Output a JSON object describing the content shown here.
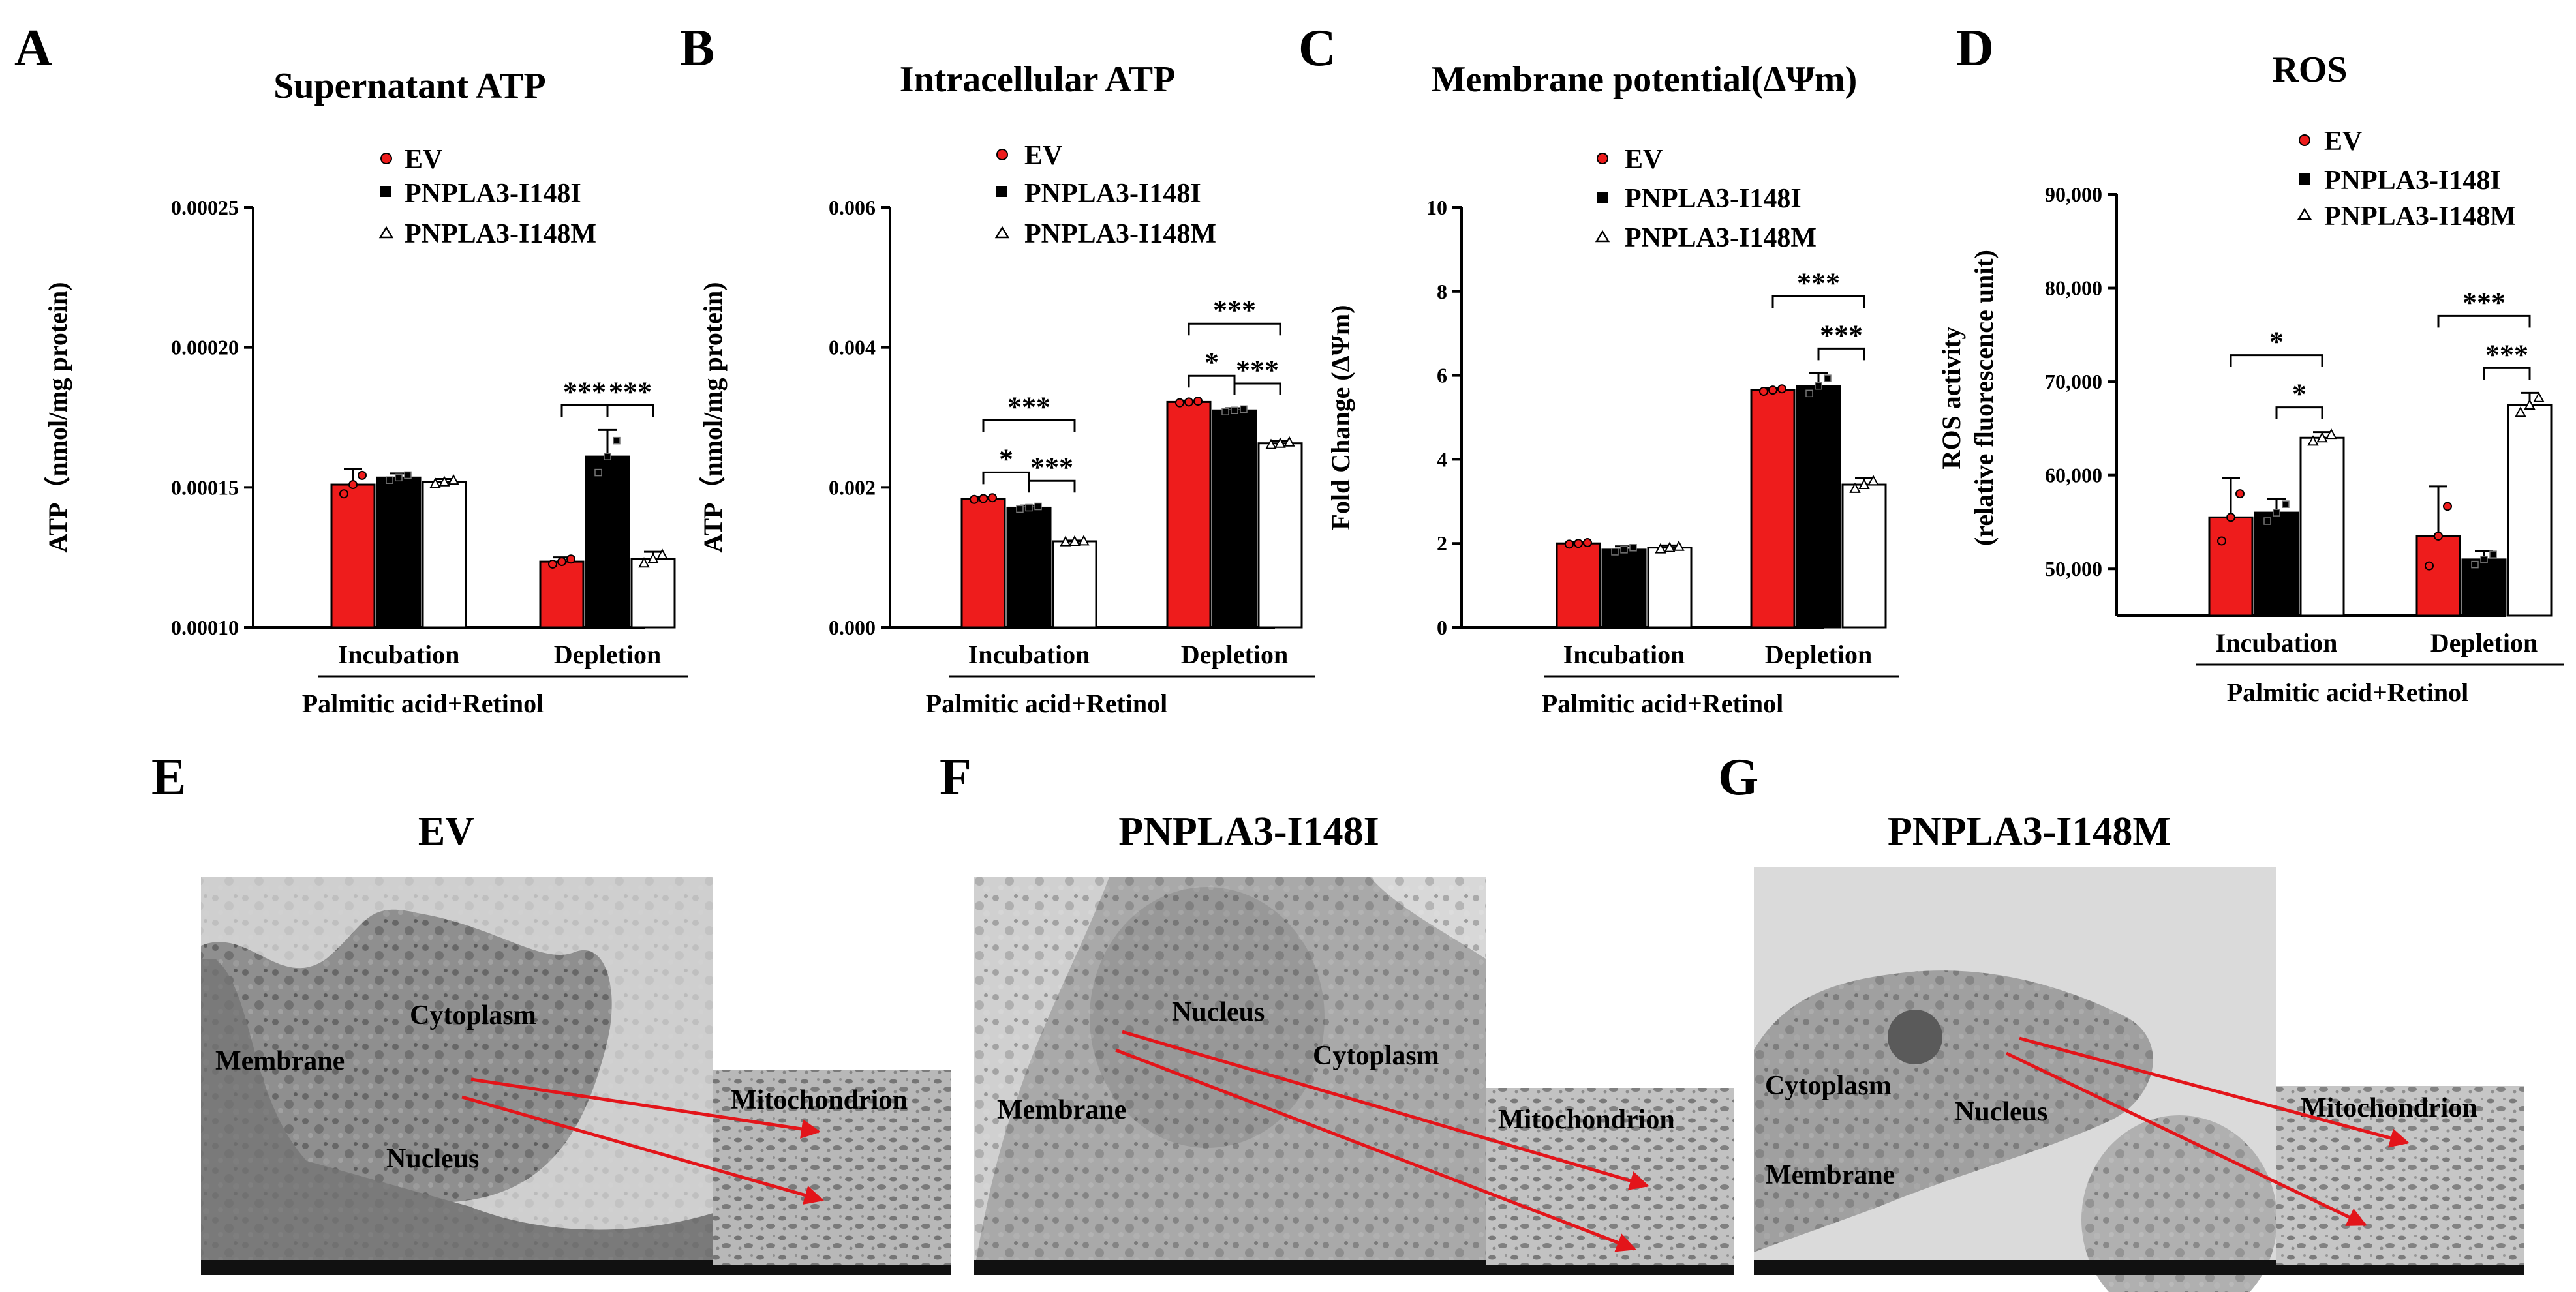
{
  "colors": {
    "ev": "#ee1c1c",
    "i148i": "#000000",
    "i148m": "#ffffff",
    "arrow": "#e3151a",
    "axis": "#000000"
  },
  "legend": [
    "EV",
    "PNPLA3-I148I",
    "PNPLA3-I148M"
  ],
  "group_label": "Palmitic acid+Retinol",
  "chart_data": [
    {
      "panel": "A",
      "type": "bar",
      "title": "Supernatant ATP",
      "ylabel": "ATP（nmol/mg protein)",
      "xlabel": "Palmitic acid+Retinol",
      "categories": [
        "Incubation",
        "Depletion"
      ],
      "ylim": [
        0.0001,
        0.00025
      ],
      "ytick_values": [
        0.0001,
        0.00015,
        0.0002,
        0.00025
      ],
      "ytick_labels": [
        "0.00010",
        "0.00015",
        "0.00020",
        "0.00025"
      ],
      "series": [
        {
          "name": "EV",
          "values": [
            0.000151,
            0.0001235
          ],
          "errors": [
            5.5e-06,
            1.5e-06
          ]
        },
        {
          "name": "PNPLA3-I148I",
          "values": [
            0.0001535,
            0.000161
          ],
          "errors": [
            1.5e-06,
            9.5e-06
          ]
        },
        {
          "name": "PNPLA3-I148M",
          "values": [
            0.000152,
            0.0001245
          ],
          "errors": [
            1e-06,
            2.5e-06
          ]
        }
      ],
      "significance": [
        {
          "group": 1,
          "from": 0,
          "to": 1,
          "label": "***",
          "level": 0
        },
        {
          "group": 1,
          "from": 1,
          "to": 2,
          "label": "***",
          "level": 0
        }
      ]
    },
    {
      "panel": "B",
      "type": "bar",
      "title": "Intracellular ATP",
      "ylabel": "ATP（nmol/mg protein)",
      "xlabel": "Palmitic acid+Retinol",
      "categories": [
        "Incubation",
        "Depletion"
      ],
      "ylim": [
        0,
        0.006
      ],
      "ytick_values": [
        0,
        0.002,
        0.004,
        0.006
      ],
      "ytick_labels": [
        "0.000",
        "0.002",
        "0.004",
        "0.006"
      ],
      "series": [
        {
          "name": "EV",
          "values": [
            0.00184,
            0.00322
          ],
          "errors": [
            2e-05,
            2e-05
          ]
        },
        {
          "name": "PNPLA3-I148I",
          "values": [
            0.00171,
            0.0031
          ],
          "errors": [
            3e-05,
            3e-05
          ]
        },
        {
          "name": "PNPLA3-I148M",
          "values": [
            0.00123,
            0.00263
          ],
          "errors": [
            1e-05,
            3e-05
          ]
        }
      ],
      "significance": [
        {
          "group": 0,
          "from": 0,
          "to": 1,
          "label": "*",
          "level": 0
        },
        {
          "group": 0,
          "from": 1,
          "to": 2,
          "label": "***",
          "level": 0
        },
        {
          "group": 0,
          "from": 0,
          "to": 2,
          "label": "***",
          "level": 1
        },
        {
          "group": 1,
          "from": 0,
          "to": 1,
          "label": "*",
          "level": 0
        },
        {
          "group": 1,
          "from": 1,
          "to": 2,
          "label": "***",
          "level": 0
        },
        {
          "group": 1,
          "from": 0,
          "to": 2,
          "label": "***",
          "level": 1
        }
      ]
    },
    {
      "panel": "C",
      "type": "bar",
      "title": "Membrane potential(ΔΨm)",
      "ylabel": "Fold Change (ΔΨm)",
      "xlabel": "Palmitic acid+Retinol",
      "categories": [
        "Incubation",
        "Depletion"
      ],
      "ylim": [
        0,
        10
      ],
      "ytick_values": [
        0,
        2,
        4,
        6,
        8,
        10
      ],
      "ytick_labels": [
        "0",
        "2",
        "4",
        "6",
        "8",
        "10"
      ],
      "series": [
        {
          "name": "EV",
          "values": [
            2.0,
            5.65
          ],
          "errors": [
            0.03,
            0.05
          ]
        },
        {
          "name": "PNPLA3-I148I",
          "values": [
            1.85,
            5.75
          ],
          "errors": [
            0.08,
            0.3
          ]
        },
        {
          "name": "PNPLA3-I148M",
          "values": [
            1.9,
            3.4
          ],
          "errors": [
            0.05,
            0.15
          ]
        }
      ],
      "significance": [
        {
          "group": 1,
          "from": 1,
          "to": 2,
          "label": "***",
          "level": 0
        },
        {
          "group": 1,
          "from": 0,
          "to": 2,
          "label": "***",
          "level": 1
        }
      ]
    },
    {
      "panel": "D",
      "type": "bar",
      "title": "ROS",
      "ylabel": "ROS activity",
      "ylabel2": "(relative fluorescence unit)",
      "xlabel": "Palmitic acid+Retinol",
      "categories": [
        "Incubation",
        "Depletion"
      ],
      "ylim": [
        45000,
        90000
      ],
      "ytick_values": [
        50000,
        60000,
        70000,
        80000,
        90000
      ],
      "ytick_labels": [
        "50,000",
        "60,000",
        "70,000",
        "80,000",
        "90,000"
      ],
      "series": [
        {
          "name": "EV",
          "values": [
            55500,
            53500
          ],
          "errors": [
            4200,
            5300
          ]
        },
        {
          "name": "PNPLA3-I148I",
          "values": [
            56000,
            51000
          ],
          "errors": [
            1500,
            900
          ]
        },
        {
          "name": "PNPLA3-I148M",
          "values": [
            64000,
            67500
          ],
          "errors": [
            600,
            1300
          ]
        }
      ],
      "significance": [
        {
          "group": 0,
          "from": 1,
          "to": 2,
          "label": "*",
          "level": 0
        },
        {
          "group": 0,
          "from": 0,
          "to": 2,
          "label": "*",
          "level": 1
        },
        {
          "group": 1,
          "from": 1,
          "to": 2,
          "label": "***",
          "level": 0
        },
        {
          "group": 1,
          "from": 0,
          "to": 2,
          "label": "***",
          "level": 1
        }
      ]
    }
  ],
  "micrographs": [
    {
      "panel": "E",
      "title": "EV",
      "labels": [
        "Cytoplasm",
        "Membrane",
        "Nucleus"
      ],
      "inset_label": "Mitochondrion"
    },
    {
      "panel": "F",
      "title": "PNPLA3-I148I",
      "labels": [
        "Nucleus",
        "Cytoplasm",
        "Membrane"
      ],
      "inset_label": "Mitochondrion"
    },
    {
      "panel": "G",
      "title": "PNPLA3-I148M",
      "labels": [
        "Cytoplasm",
        "Nucleus",
        "Membrane"
      ],
      "inset_label": "Mitochondrion"
    }
  ]
}
